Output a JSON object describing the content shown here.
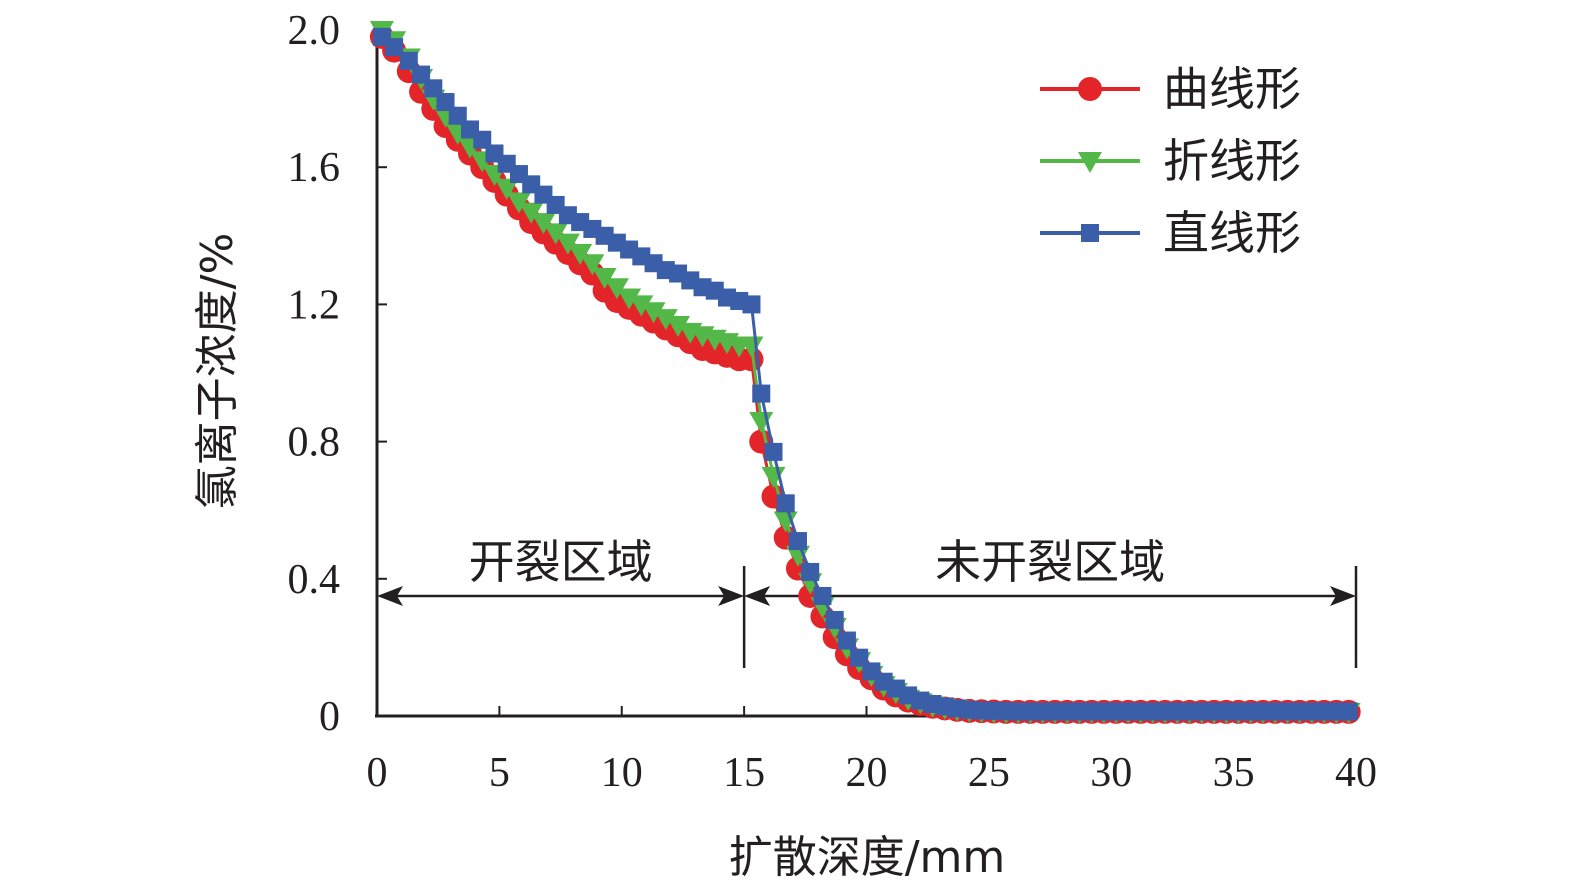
{
  "chart_data": {
    "type": "line",
    "xlabel": "扩散深度/mm",
    "ylabel": "氯离子浓度/%",
    "xlim": [
      0,
      40
    ],
    "ylim": [
      0,
      2.0
    ],
    "xticks": [
      "0",
      "5",
      "10",
      "15",
      "20",
      "25",
      "30",
      "35",
      "40"
    ],
    "yticks": [
      "0",
      "0.4",
      "0.8",
      "1.2",
      "1.6",
      "2.0"
    ],
    "grid": false,
    "legend_position": "top-right",
    "annotations": [
      {
        "label": "开裂区域",
        "from": 0,
        "to": 15
      },
      {
        "label": "未开裂区域",
        "from": 15,
        "to": 40
      }
    ],
    "series": [
      {
        "name": "曲线形",
        "color": "#e32428",
        "marker": "circle",
        "points": [
          [
            0.2,
            1.98
          ],
          [
            0.7,
            1.94
          ],
          [
            1.3,
            1.88
          ],
          [
            1.8,
            1.82
          ],
          [
            2.3,
            1.77
          ],
          [
            2.8,
            1.72
          ],
          [
            3.3,
            1.68
          ],
          [
            3.8,
            1.64
          ],
          [
            4.3,
            1.6
          ],
          [
            4.8,
            1.56
          ],
          [
            5.3,
            1.52
          ],
          [
            5.8,
            1.48
          ],
          [
            6.3,
            1.44
          ],
          [
            6.8,
            1.41
          ],
          [
            7.3,
            1.38
          ],
          [
            7.8,
            1.35
          ],
          [
            8.3,
            1.32
          ],
          [
            8.8,
            1.29
          ],
          [
            9.3,
            1.24
          ],
          [
            9.8,
            1.21
          ],
          [
            10.3,
            1.19
          ],
          [
            10.8,
            1.17
          ],
          [
            11.3,
            1.15
          ],
          [
            11.8,
            1.13
          ],
          [
            12.3,
            1.11
          ],
          [
            12.8,
            1.09
          ],
          [
            13.3,
            1.07
          ],
          [
            13.8,
            1.06
          ],
          [
            14.3,
            1.05
          ],
          [
            14.8,
            1.04
          ],
          [
            15.3,
            1.04
          ],
          [
            15.7,
            0.8
          ],
          [
            16.2,
            0.64
          ],
          [
            16.7,
            0.52
          ],
          [
            17.2,
            0.43
          ],
          [
            17.7,
            0.35
          ],
          [
            18.2,
            0.29
          ],
          [
            18.7,
            0.23
          ],
          [
            19.2,
            0.18
          ],
          [
            19.7,
            0.14
          ],
          [
            20.2,
            0.11
          ],
          [
            20.7,
            0.08
          ],
          [
            21.2,
            0.06
          ],
          [
            21.7,
            0.045
          ],
          [
            22.2,
            0.035
          ],
          [
            22.7,
            0.027
          ],
          [
            23.2,
            0.022
          ],
          [
            23.7,
            0.018
          ],
          [
            24.2,
            0.015
          ],
          [
            24.7,
            0.014
          ],
          [
            25.2,
            0.013
          ],
          [
            25.7,
            0.012
          ],
          [
            26.2,
            0.012
          ],
          [
            26.7,
            0.012
          ],
          [
            27.2,
            0.012
          ],
          [
            27.7,
            0.012
          ],
          [
            28.2,
            0.012
          ],
          [
            28.7,
            0.012
          ],
          [
            29.2,
            0.012
          ],
          [
            29.7,
            0.012
          ],
          [
            30.2,
            0.012
          ],
          [
            30.7,
            0.012
          ],
          [
            31.2,
            0.012
          ],
          [
            31.7,
            0.012
          ],
          [
            32.2,
            0.012
          ],
          [
            32.7,
            0.012
          ],
          [
            33.2,
            0.012
          ],
          [
            33.7,
            0.012
          ],
          [
            34.2,
            0.012
          ],
          [
            34.7,
            0.012
          ],
          [
            35.2,
            0.012
          ],
          [
            35.7,
            0.012
          ],
          [
            36.2,
            0.012
          ],
          [
            36.7,
            0.012
          ],
          [
            37.2,
            0.012
          ],
          [
            37.7,
            0.012
          ],
          [
            38.2,
            0.012
          ],
          [
            38.7,
            0.012
          ],
          [
            39.2,
            0.012
          ],
          [
            39.7,
            0.012
          ]
        ]
      },
      {
        "name": "折线形",
        "color": "#53b848",
        "marker": "triangle-down",
        "points": [
          [
            0.2,
            2.0
          ],
          [
            0.7,
            1.97
          ],
          [
            1.3,
            1.92
          ],
          [
            1.8,
            1.86
          ],
          [
            2.3,
            1.8
          ],
          [
            2.8,
            1.75
          ],
          [
            3.3,
            1.7
          ],
          [
            3.8,
            1.66
          ],
          [
            4.3,
            1.62
          ],
          [
            4.8,
            1.58
          ],
          [
            5.3,
            1.54
          ],
          [
            5.8,
            1.5
          ],
          [
            6.3,
            1.47
          ],
          [
            6.8,
            1.44
          ],
          [
            7.3,
            1.41
          ],
          [
            7.8,
            1.38
          ],
          [
            8.3,
            1.35
          ],
          [
            8.8,
            1.32
          ],
          [
            9.3,
            1.28
          ],
          [
            9.8,
            1.25
          ],
          [
            10.3,
            1.22
          ],
          [
            10.8,
            1.2
          ],
          [
            11.3,
            1.18
          ],
          [
            11.8,
            1.16
          ],
          [
            12.3,
            1.14
          ],
          [
            12.8,
            1.12
          ],
          [
            13.3,
            1.11
          ],
          [
            13.8,
            1.1
          ],
          [
            14.3,
            1.09
          ],
          [
            14.8,
            1.08
          ],
          [
            15.3,
            1.08
          ],
          [
            15.7,
            0.86
          ],
          [
            16.2,
            0.7
          ],
          [
            16.7,
            0.57
          ],
          [
            17.2,
            0.47
          ],
          [
            17.7,
            0.39
          ],
          [
            18.2,
            0.32
          ],
          [
            18.7,
            0.26
          ],
          [
            19.2,
            0.2
          ],
          [
            19.7,
            0.16
          ],
          [
            20.2,
            0.12
          ],
          [
            20.7,
            0.09
          ],
          [
            21.2,
            0.07
          ],
          [
            21.7,
            0.05
          ],
          [
            22.2,
            0.04
          ],
          [
            22.7,
            0.03
          ],
          [
            23.2,
            0.024
          ],
          [
            23.7,
            0.019
          ],
          [
            24.2,
            0.016
          ],
          [
            24.7,
            0.014
          ],
          [
            25.2,
            0.013
          ],
          [
            25.7,
            0.012
          ],
          [
            26.2,
            0.012
          ],
          [
            26.7,
            0.012
          ],
          [
            27.2,
            0.012
          ],
          [
            27.7,
            0.012
          ],
          [
            28.2,
            0.012
          ],
          [
            28.7,
            0.012
          ],
          [
            29.2,
            0.012
          ],
          [
            29.7,
            0.012
          ],
          [
            30.2,
            0.012
          ],
          [
            30.7,
            0.012
          ],
          [
            31.2,
            0.012
          ],
          [
            31.7,
            0.012
          ],
          [
            32.2,
            0.012
          ],
          [
            32.7,
            0.012
          ],
          [
            33.2,
            0.012
          ],
          [
            33.7,
            0.012
          ],
          [
            34.2,
            0.012
          ],
          [
            34.7,
            0.012
          ],
          [
            35.2,
            0.012
          ],
          [
            35.7,
            0.012
          ],
          [
            36.2,
            0.012
          ],
          [
            36.7,
            0.012
          ],
          [
            37.2,
            0.012
          ],
          [
            37.7,
            0.012
          ],
          [
            38.2,
            0.012
          ],
          [
            38.7,
            0.012
          ],
          [
            39.2,
            0.012
          ],
          [
            39.7,
            0.012
          ]
        ]
      },
      {
        "name": "直线形",
        "color": "#3a5ea8",
        "marker": "square",
        "points": [
          [
            0.2,
            1.98
          ],
          [
            0.7,
            1.95
          ],
          [
            1.3,
            1.91
          ],
          [
            1.8,
            1.87
          ],
          [
            2.3,
            1.83
          ],
          [
            2.8,
            1.79
          ],
          [
            3.3,
            1.75
          ],
          [
            3.8,
            1.71
          ],
          [
            4.3,
            1.68
          ],
          [
            4.8,
            1.64
          ],
          [
            5.3,
            1.61
          ],
          [
            5.8,
            1.58
          ],
          [
            6.3,
            1.55
          ],
          [
            6.8,
            1.52
          ],
          [
            7.3,
            1.49
          ],
          [
            7.8,
            1.46
          ],
          [
            8.3,
            1.44
          ],
          [
            8.8,
            1.42
          ],
          [
            9.3,
            1.4
          ],
          [
            9.8,
            1.38
          ],
          [
            10.3,
            1.36
          ],
          [
            10.8,
            1.34
          ],
          [
            11.3,
            1.32
          ],
          [
            11.8,
            1.3
          ],
          [
            12.3,
            1.29
          ],
          [
            12.8,
            1.27
          ],
          [
            13.3,
            1.25
          ],
          [
            13.8,
            1.24
          ],
          [
            14.3,
            1.22
          ],
          [
            14.8,
            1.21
          ],
          [
            15.3,
            1.2
          ],
          [
            15.7,
            0.94
          ],
          [
            16.2,
            0.77
          ],
          [
            16.7,
            0.62
          ],
          [
            17.2,
            0.51
          ],
          [
            17.7,
            0.42
          ],
          [
            18.2,
            0.35
          ],
          [
            18.7,
            0.28
          ],
          [
            19.2,
            0.22
          ],
          [
            19.7,
            0.17
          ],
          [
            20.2,
            0.13
          ],
          [
            20.7,
            0.1
          ],
          [
            21.2,
            0.08
          ],
          [
            21.7,
            0.06
          ],
          [
            22.2,
            0.045
          ],
          [
            22.7,
            0.035
          ],
          [
            23.2,
            0.028
          ],
          [
            23.7,
            0.022
          ],
          [
            24.2,
            0.018
          ],
          [
            24.7,
            0.016
          ],
          [
            25.2,
            0.015
          ],
          [
            25.7,
            0.014
          ],
          [
            26.2,
            0.013
          ],
          [
            26.7,
            0.013
          ],
          [
            27.2,
            0.013
          ],
          [
            27.7,
            0.013
          ],
          [
            28.2,
            0.013
          ],
          [
            28.7,
            0.013
          ],
          [
            29.2,
            0.013
          ],
          [
            29.7,
            0.013
          ],
          [
            30.2,
            0.013
          ],
          [
            30.7,
            0.013
          ],
          [
            31.2,
            0.013
          ],
          [
            31.7,
            0.013
          ],
          [
            32.2,
            0.013
          ],
          [
            32.7,
            0.013
          ],
          [
            33.2,
            0.013
          ],
          [
            33.7,
            0.013
          ],
          [
            34.2,
            0.013
          ],
          [
            34.7,
            0.013
          ],
          [
            35.2,
            0.013
          ],
          [
            35.7,
            0.013
          ],
          [
            36.2,
            0.013
          ],
          [
            36.7,
            0.013
          ],
          [
            37.2,
            0.013
          ],
          [
            37.7,
            0.013
          ],
          [
            38.2,
            0.013
          ],
          [
            38.7,
            0.013
          ],
          [
            39.2,
            0.013
          ],
          [
            39.7,
            0.013
          ]
        ]
      }
    ]
  }
}
